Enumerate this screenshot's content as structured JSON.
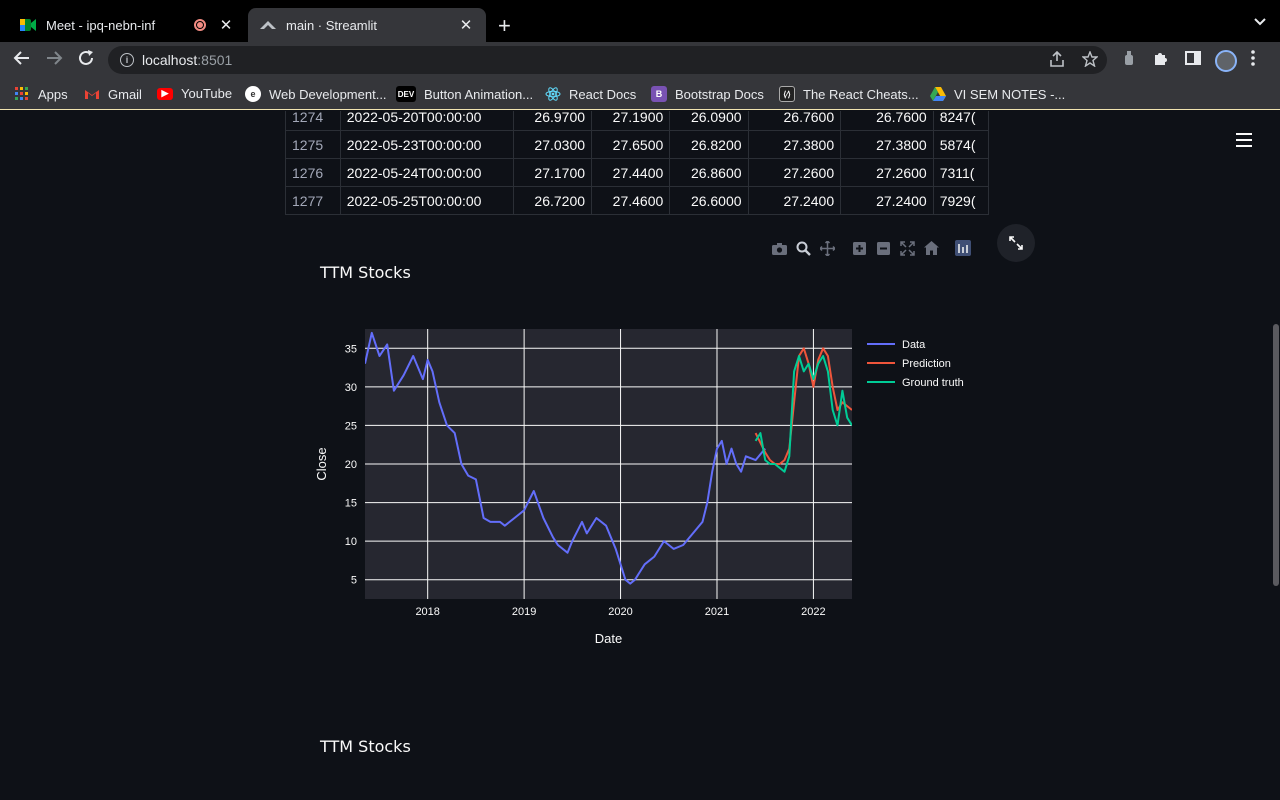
{
  "browser": {
    "tabs": [
      {
        "title": "Meet - ipq-nebn-inf",
        "icon": "google-meet-icon",
        "recording": true
      },
      {
        "title": "main · Streamlit",
        "icon": "streamlit-icon",
        "active": true
      }
    ],
    "url_host": "localhost",
    "url_port": ":8501",
    "bookmarks": [
      {
        "label": "Apps",
        "icon": "apps-grid-icon",
        "color": "#4285f4"
      },
      {
        "label": "Gmail",
        "icon": "gmail-icon",
        "color": "#ea4335"
      },
      {
        "label": "YouTube",
        "icon": "youtube-icon",
        "color": "#ff0000"
      },
      {
        "label": "Web Development...",
        "icon": "web-dev-icon",
        "color": "#ffffff"
      },
      {
        "label": "Button Animation...",
        "icon": "dev-to-icon",
        "color": "#000000"
      },
      {
        "label": "React Docs",
        "icon": "react-icon",
        "color": "#61dafb"
      },
      {
        "label": "Bootstrap Docs",
        "icon": "bootstrap-icon",
        "color": "#7952b3"
      },
      {
        "label": "The React Cheats...",
        "icon": "react-cheatsheet-icon",
        "color": "#222222"
      },
      {
        "label": "VI SEM NOTES -...",
        "icon": "google-drive-icon",
        "color": "#fbbc04"
      }
    ]
  },
  "table": {
    "rows": [
      [
        "1274",
        "2022-05-20T00:00:00",
        "26.9700",
        "27.1900",
        "26.0900",
        "26.7600",
        "26.7600",
        "8247("
      ],
      [
        "1275",
        "2022-05-23T00:00:00",
        "27.0300",
        "27.6500",
        "26.8200",
        "27.3800",
        "27.3800",
        "5874("
      ],
      [
        "1276",
        "2022-05-24T00:00:00",
        "27.1700",
        "27.4400",
        "26.8600",
        "27.2600",
        "27.2600",
        "7311("
      ],
      [
        "1277",
        "2022-05-25T00:00:00",
        "26.7200",
        "27.4600",
        "26.6000",
        "27.2400",
        "27.2400",
        "7929("
      ]
    ]
  },
  "section_titles": [
    "TTM Stocks",
    "TTM Stocks"
  ],
  "modebar": [
    "camera-icon",
    "zoom-icon",
    "pan-icon",
    "zoom-in-icon",
    "zoom-out-icon",
    "autoscale-icon",
    "reset-axes-icon",
    "plotly-logo-icon"
  ],
  "chart_data": {
    "type": "line",
    "title": "",
    "xlabel": "Date",
    "ylabel": "Close",
    "xlim": [
      2017.35,
      2022.4
    ],
    "ylim": [
      2.5,
      37.5
    ],
    "x_ticks": [
      "2018",
      "2019",
      "2020",
      "2021",
      "2022"
    ],
    "y_ticks": [
      5,
      10,
      15,
      20,
      25,
      30,
      35
    ],
    "grid": true,
    "legend_position": "right",
    "series": [
      {
        "name": "Data",
        "color": "#636efa",
        "x": [
          2017.35,
          2017.42,
          2017.5,
          2017.58,
          2017.65,
          2017.75,
          2017.85,
          2017.95,
          2018.0,
          2018.05,
          2018.12,
          2018.2,
          2018.28,
          2018.35,
          2018.42,
          2018.5,
          2018.58,
          2018.65,
          2018.75,
          2018.8,
          2018.9,
          2019.0,
          2019.1,
          2019.2,
          2019.3,
          2019.35,
          2019.45,
          2019.5,
          2019.6,
          2019.65,
          2019.75,
          2019.85,
          2019.95,
          2020.05,
          2020.1,
          2020.15,
          2020.2,
          2020.25,
          2020.35,
          2020.45,
          2020.55,
          2020.65,
          2020.75,
          2020.85,
          2020.9,
          2020.95,
          2021.0,
          2021.05,
          2021.1,
          2021.15,
          2021.2,
          2021.25,
          2021.3,
          2021.4,
          2021.5
        ],
        "y": [
          33,
          37,
          34,
          35.5,
          29.5,
          31.5,
          34,
          31,
          33.5,
          32,
          28,
          25,
          24,
          20,
          18.5,
          18,
          13,
          12.5,
          12.5,
          12,
          13,
          14,
          16.5,
          13,
          10.5,
          9.5,
          8.5,
          10,
          12.5,
          11,
          13,
          12,
          9,
          5,
          4.5,
          5,
          6,
          7,
          8,
          10,
          9,
          9.5,
          11,
          12.5,
          15,
          19,
          22,
          23,
          20,
          22,
          20,
          19,
          21,
          20.5,
          22
        ]
      },
      {
        "name": "Prediction",
        "color": "#ef553b",
        "x": [
          2021.4,
          2021.5,
          2021.55,
          2021.6,
          2021.65,
          2021.7,
          2021.75,
          2021.8,
          2021.85,
          2021.9,
          2021.95,
          2022.0,
          2022.05,
          2022.1,
          2022.15,
          2022.2,
          2022.25,
          2022.3,
          2022.35,
          2022.4
        ],
        "y": [
          24,
          21.5,
          20.5,
          20,
          20,
          20.5,
          22,
          28,
          34,
          35,
          33,
          30,
          33.5,
          35,
          34,
          30,
          27,
          28,
          27.5,
          27
        ]
      },
      {
        "name": "Ground truth",
        "color": "#00cc96",
        "x": [
          2021.4,
          2021.45,
          2021.5,
          2021.55,
          2021.6,
          2021.65,
          2021.7,
          2021.75,
          2021.8,
          2021.85,
          2021.9,
          2021.95,
          2022.0,
          2022.05,
          2022.1,
          2022.15,
          2022.2,
          2022.25,
          2022.3,
          2022.35,
          2022.4
        ],
        "y": [
          23,
          24,
          20.5,
          20,
          20,
          19.5,
          19,
          21,
          32,
          34,
          32,
          33,
          31,
          33,
          34,
          32,
          27,
          25,
          29.5,
          26,
          25
        ]
      }
    ]
  }
}
